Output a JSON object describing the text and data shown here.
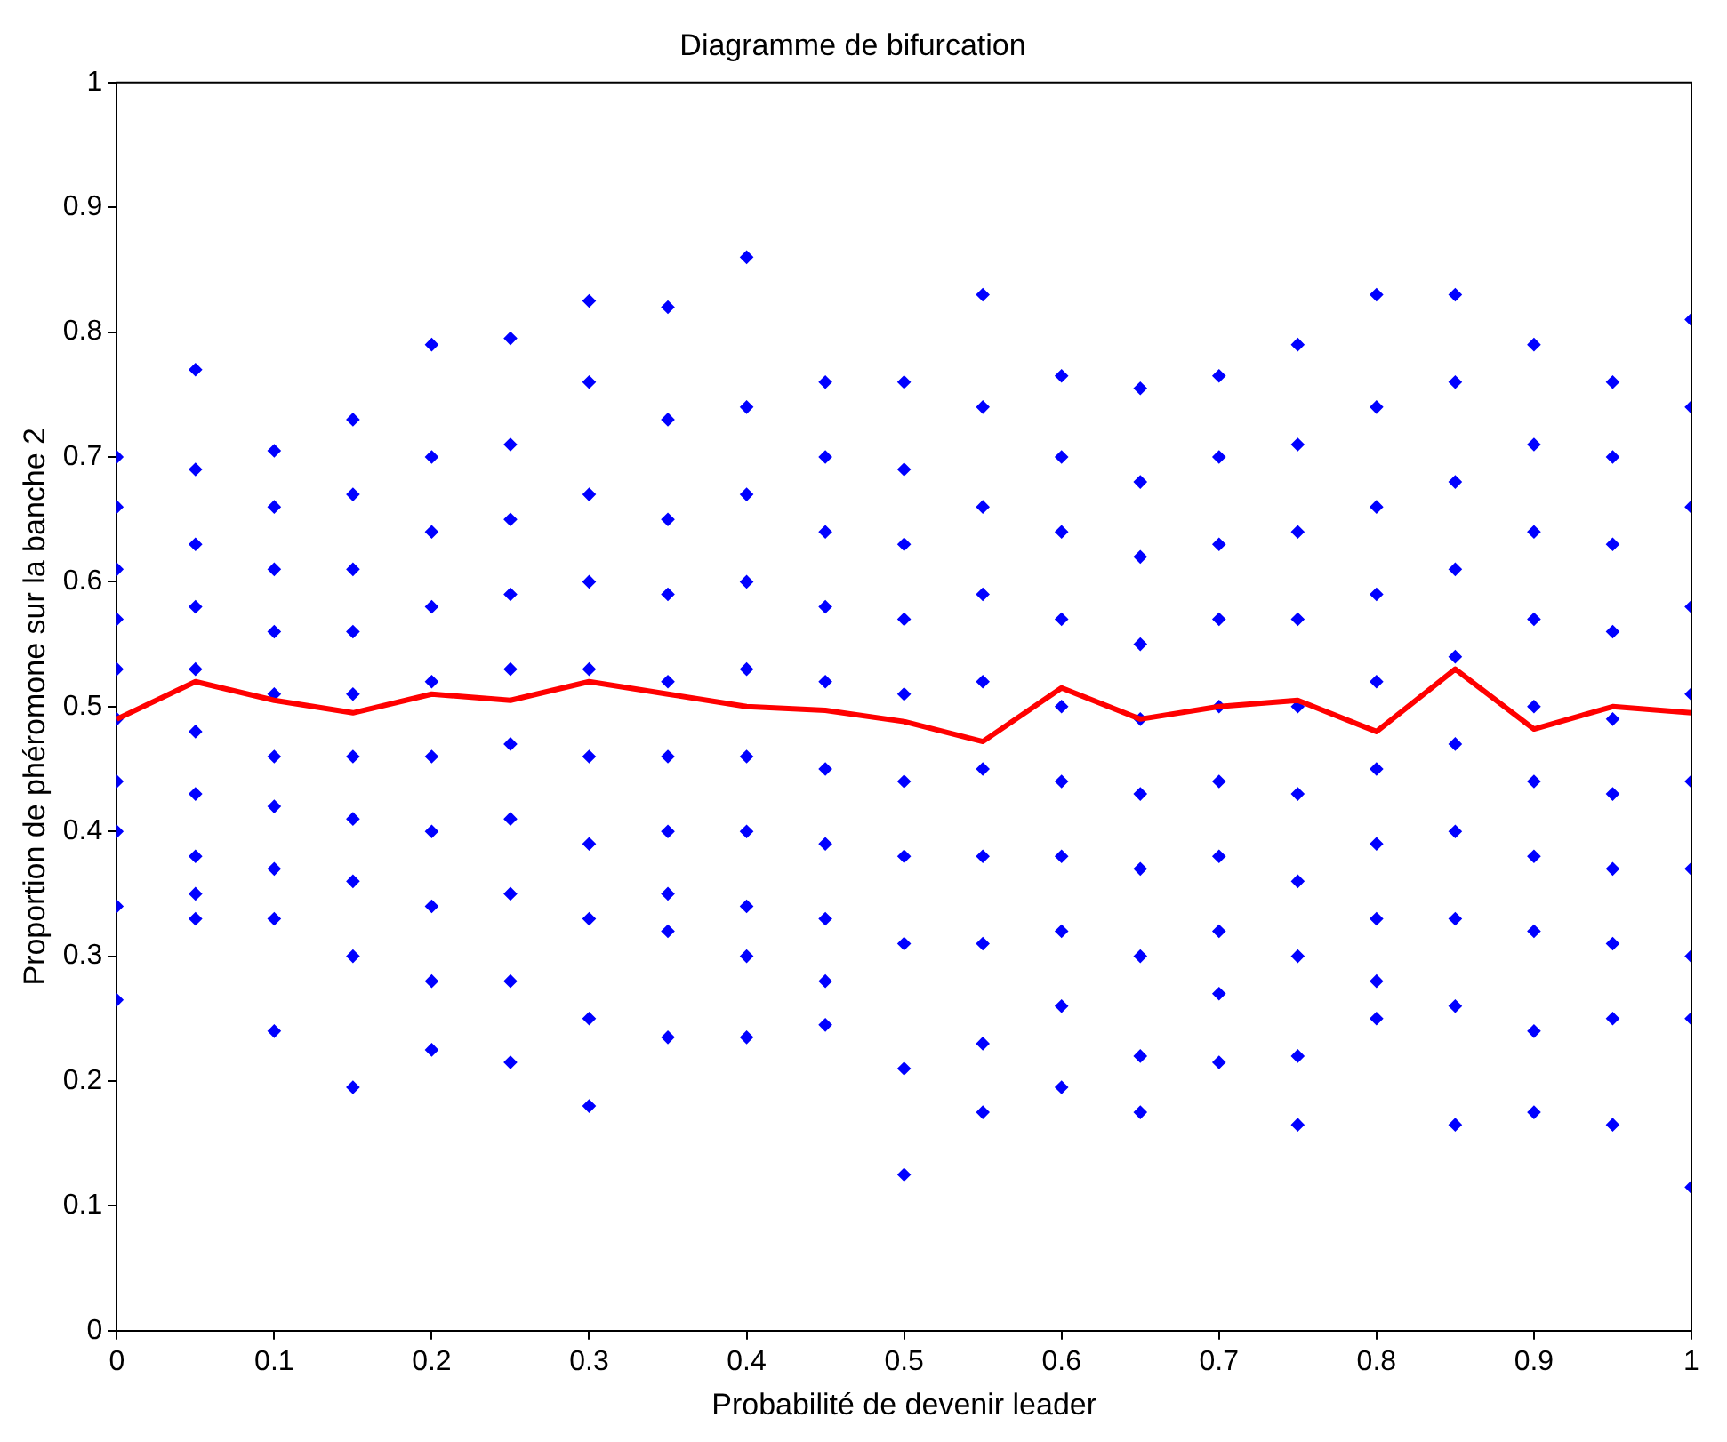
{
  "chart_data": {
    "type": "scatter",
    "title": "Diagramme de bifurcation",
    "xlabel": "Probabilité de devenir leader",
    "ylabel": "Proportion de phéromone sur la banche 2",
    "xlim": [
      0,
      1
    ],
    "xticks": [
      0,
      0.1,
      0.2,
      0.3,
      0.4,
      0.5,
      0.6,
      0.7,
      0.8,
      0.9,
      1
    ],
    "ylim": [
      0,
      1
    ],
    "yticks": [
      0,
      0.1,
      0.2,
      0.3,
      0.4,
      0.5,
      0.6,
      0.7,
      0.8,
      0.9,
      1
    ],
    "legend": false,
    "series": [
      {
        "type": "scatter",
        "marker": "diamond",
        "color": "#0000ff",
        "x": [
          0,
          0,
          0,
          0,
          0,
          0,
          0,
          0,
          0,
          0,
          0.05,
          0.05,
          0.05,
          0.05,
          0.05,
          0.05,
          0.05,
          0.05,
          0.05,
          0.05,
          0.1,
          0.1,
          0.1,
          0.1,
          0.1,
          0.1,
          0.1,
          0.1,
          0.1,
          0.1,
          0.15,
          0.15,
          0.15,
          0.15,
          0.15,
          0.15,
          0.15,
          0.15,
          0.15,
          0.15,
          0.2,
          0.2,
          0.2,
          0.2,
          0.2,
          0.2,
          0.2,
          0.2,
          0.2,
          0.2,
          0.25,
          0.25,
          0.25,
          0.25,
          0.25,
          0.25,
          0.25,
          0.25,
          0.25,
          0.25,
          0.3,
          0.3,
          0.3,
          0.3,
          0.3,
          0.3,
          0.3,
          0.3,
          0.3,
          0.3,
          0.35,
          0.35,
          0.35,
          0.35,
          0.35,
          0.35,
          0.35,
          0.35,
          0.35,
          0.35,
          0.4,
          0.4,
          0.4,
          0.4,
          0.4,
          0.4,
          0.4,
          0.4,
          0.4,
          0.4,
          0.45,
          0.45,
          0.45,
          0.45,
          0.45,
          0.45,
          0.45,
          0.45,
          0.45,
          0.45,
          0.5,
          0.5,
          0.5,
          0.5,
          0.5,
          0.5,
          0.5,
          0.5,
          0.5,
          0.5,
          0.55,
          0.55,
          0.55,
          0.55,
          0.55,
          0.55,
          0.55,
          0.55,
          0.55,
          0.55,
          0.6,
          0.6,
          0.6,
          0.6,
          0.6,
          0.6,
          0.6,
          0.6,
          0.6,
          0.6,
          0.65,
          0.65,
          0.65,
          0.65,
          0.65,
          0.65,
          0.65,
          0.65,
          0.65,
          0.65,
          0.7,
          0.7,
          0.7,
          0.7,
          0.7,
          0.7,
          0.7,
          0.7,
          0.7,
          0.7,
          0.75,
          0.75,
          0.75,
          0.75,
          0.75,
          0.75,
          0.75,
          0.75,
          0.75,
          0.75,
          0.8,
          0.8,
          0.8,
          0.8,
          0.8,
          0.8,
          0.8,
          0.8,
          0.8,
          0.8,
          0.85,
          0.85,
          0.85,
          0.85,
          0.85,
          0.85,
          0.85,
          0.85,
          0.85,
          0.85,
          0.9,
          0.9,
          0.9,
          0.9,
          0.9,
          0.9,
          0.9,
          0.9,
          0.9,
          0.9,
          0.95,
          0.95,
          0.95,
          0.95,
          0.95,
          0.95,
          0.95,
          0.95,
          0.95,
          0.95,
          1,
          1,
          1,
          1,
          1,
          1,
          1,
          1,
          1,
          1
        ],
        "values": [
          0.7,
          0.66,
          0.61,
          0.57,
          0.53,
          0.49,
          0.44,
          0.4,
          0.34,
          0.265,
          0.77,
          0.69,
          0.63,
          0.58,
          0.53,
          0.48,
          0.43,
          0.38,
          0.35,
          0.33,
          0.705,
          0.66,
          0.61,
          0.56,
          0.51,
          0.46,
          0.42,
          0.37,
          0.33,
          0.24,
          0.73,
          0.67,
          0.61,
          0.56,
          0.51,
          0.46,
          0.41,
          0.36,
          0.3,
          0.195,
          0.79,
          0.7,
          0.64,
          0.58,
          0.52,
          0.46,
          0.4,
          0.34,
          0.28,
          0.225,
          0.795,
          0.71,
          0.65,
          0.59,
          0.53,
          0.47,
          0.41,
          0.35,
          0.28,
          0.215,
          0.825,
          0.76,
          0.67,
          0.6,
          0.53,
          0.46,
          0.39,
          0.33,
          0.25,
          0.18,
          0.82,
          0.73,
          0.65,
          0.59,
          0.52,
          0.46,
          0.4,
          0.35,
          0.32,
          0.235,
          0.86,
          0.74,
          0.67,
          0.6,
          0.53,
          0.46,
          0.4,
          0.34,
          0.3,
          0.235,
          0.76,
          0.7,
          0.64,
          0.58,
          0.52,
          0.45,
          0.39,
          0.33,
          0.28,
          0.245,
          0.76,
          0.69,
          0.63,
          0.57,
          0.51,
          0.44,
          0.38,
          0.31,
          0.21,
          0.125,
          0.83,
          0.74,
          0.66,
          0.59,
          0.52,
          0.45,
          0.38,
          0.31,
          0.23,
          0.175,
          0.765,
          0.7,
          0.64,
          0.57,
          0.5,
          0.44,
          0.38,
          0.32,
          0.26,
          0.195,
          0.755,
          0.68,
          0.62,
          0.55,
          0.49,
          0.43,
          0.37,
          0.3,
          0.22,
          0.175,
          0.765,
          0.7,
          0.63,
          0.57,
          0.5,
          0.44,
          0.38,
          0.32,
          0.27,
          0.215,
          0.79,
          0.71,
          0.64,
          0.57,
          0.5,
          0.43,
          0.36,
          0.3,
          0.22,
          0.165,
          0.83,
          0.74,
          0.66,
          0.59,
          0.52,
          0.45,
          0.39,
          0.33,
          0.28,
          0.25,
          0.83,
          0.76,
          0.68,
          0.61,
          0.54,
          0.47,
          0.4,
          0.33,
          0.26,
          0.165,
          0.79,
          0.71,
          0.64,
          0.57,
          0.5,
          0.44,
          0.38,
          0.32,
          0.24,
          0.175,
          0.76,
          0.7,
          0.63,
          0.56,
          0.49,
          0.43,
          0.37,
          0.31,
          0.25,
          0.165,
          0.81,
          0.74,
          0.66,
          0.58,
          0.51,
          0.44,
          0.37,
          0.3,
          0.25,
          0.115
        ]
      },
      {
        "type": "line",
        "marker": "none",
        "color": "#ff0000",
        "x": [
          0,
          0.05,
          0.1,
          0.15,
          0.2,
          0.25,
          0.3,
          0.35,
          0.4,
          0.45,
          0.5,
          0.55,
          0.6,
          0.65,
          0.7,
          0.75,
          0.8,
          0.85,
          0.9,
          0.95,
          1
        ],
        "values": [
          0.49,
          0.52,
          0.505,
          0.495,
          0.51,
          0.505,
          0.52,
          0.51,
          0.5,
          0.497,
          0.488,
          0.472,
          0.515,
          0.49,
          0.5,
          0.505,
          0.48,
          0.53,
          0.482,
          0.5,
          0.495
        ]
      }
    ]
  }
}
